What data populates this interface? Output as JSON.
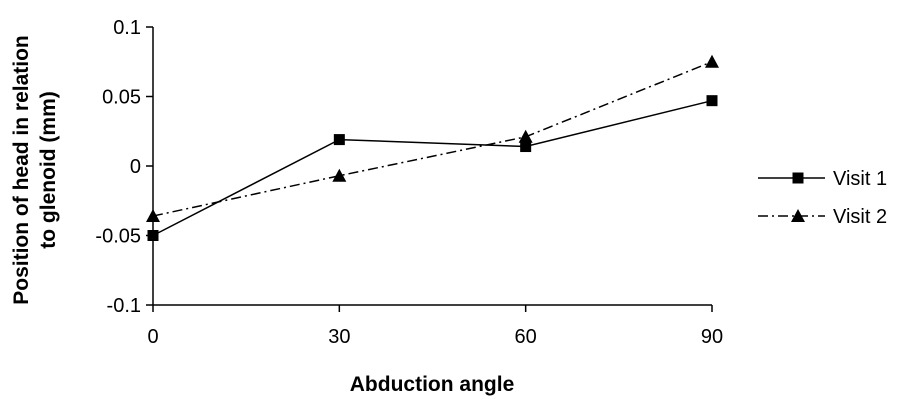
{
  "chart_data": {
    "type": "line",
    "title": "",
    "xlabel": "Abduction angle",
    "ylabel_lines": [
      "Position of head in relation",
      "to glenoid (mm)"
    ],
    "x": [
      0,
      30,
      60,
      90
    ],
    "x_tick_labels": [
      "0",
      "30",
      "60",
      "90"
    ],
    "ylim": [
      -0.1,
      0.1
    ],
    "y_ticks": [
      -0.1,
      -0.05,
      0,
      0.05,
      0.1
    ],
    "y_tick_labels": [
      "-0.1",
      "-0.05",
      "0",
      "0.05",
      "0.1"
    ],
    "grid": false,
    "legend_position": "right",
    "series": [
      {
        "name": "Visit 1",
        "values": [
          -0.05,
          0.019,
          0.014,
          0.047
        ],
        "marker": "square",
        "line_style": "solid",
        "color": "#000000"
      },
      {
        "name": "Visit 2",
        "values": [
          -0.036,
          -0.007,
          0.021,
          0.075
        ],
        "marker": "triangle",
        "line_style": "dash-dot",
        "color": "#000000"
      }
    ]
  }
}
